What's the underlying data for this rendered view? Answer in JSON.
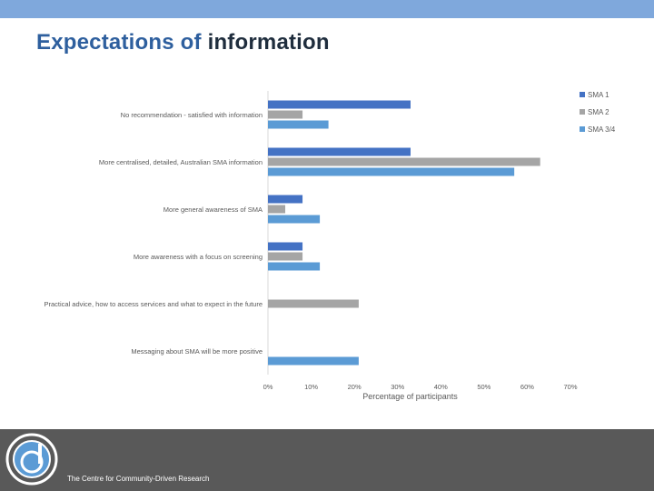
{
  "slide": {
    "title_part1": "Expectations of",
    "title_part2": "information",
    "footer_text": "The Centre for Community-Driven Research"
  },
  "colors": {
    "top_band": "#7fa8dc",
    "footer": "#595959",
    "SMA 1": "#4472c4",
    "SMA 2": "#a5a5a5",
    "SMA 3/4": "#5b9bd5"
  },
  "chart_data": {
    "type": "bar",
    "orientation": "horizontal",
    "categories": [
      "No recommendation - satisfied with information",
      "More centralised, detailed, Australian SMA information",
      "More general awareness of SMA",
      "More awareness with a focus on screening",
      "Practical advice, how to access services and what to expect in the future",
      "Messaging about SMA will be more positive"
    ],
    "series": [
      {
        "name": "SMA 1",
        "values": [
          33,
          33,
          8,
          8,
          null,
          null
        ]
      },
      {
        "name": "SMA 2",
        "values": [
          8,
          63,
          4,
          8,
          21,
          null
        ]
      },
      {
        "name": "SMA 3/4",
        "values": [
          14,
          57,
          12,
          12,
          null,
          21
        ]
      }
    ],
    "xlabel": "Percentage of participants",
    "xlim": [
      0,
      70
    ],
    "xticks": [
      "0%",
      "10%",
      "20%",
      "30%",
      "40%",
      "50%",
      "60%",
      "70%"
    ],
    "legend": "top-right",
    "grid": false
  }
}
